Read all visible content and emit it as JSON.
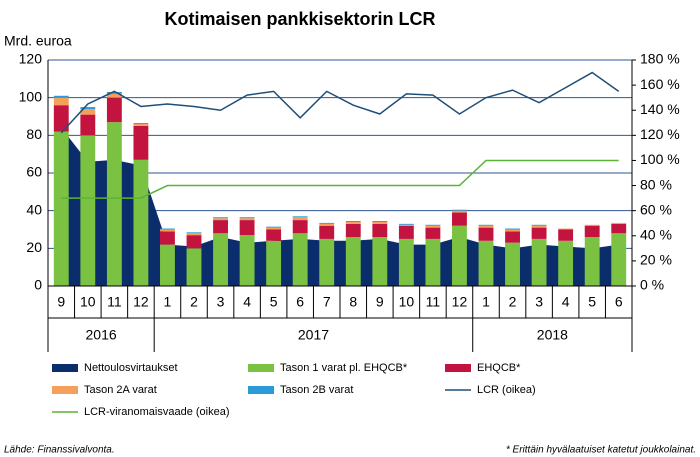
{
  "chart_data": {
    "type": "bar",
    "title": "Kotimaisen pankkisektorin LCR",
    "y_label": "Mrd. euroa",
    "categories": [
      "9",
      "10",
      "11",
      "12",
      "1",
      "2",
      "3",
      "4",
      "5",
      "6",
      "7",
      "8",
      "9",
      "10",
      "11",
      "12",
      "1",
      "2",
      "3",
      "4",
      "5",
      "6"
    ],
    "year_groups": [
      {
        "label": "2016",
        "span": 4
      },
      {
        "label": "2017",
        "span": 12
      },
      {
        "label": "2018",
        "span": 6
      }
    ],
    "ylim": [
      0,
      120
    ],
    "yticks": [
      0,
      20,
      40,
      60,
      80,
      100,
      120
    ],
    "y2lim": [
      0,
      180
    ],
    "y2ticks": [
      {
        "value": 0,
        "label": "0 %"
      },
      {
        "value": 20,
        "label": "20 %"
      },
      {
        "value": 40,
        "label": "40 %"
      },
      {
        "value": 60,
        "label": "60 %"
      },
      {
        "value": 80,
        "label": "80 %"
      },
      {
        "value": 100,
        "label": "100 %"
      },
      {
        "value": 120,
        "label": "120 %"
      },
      {
        "value": 140,
        "label": "140 %"
      },
      {
        "value": 160,
        "label": "160 %"
      },
      {
        "value": 180,
        "label": "180 %"
      }
    ],
    "grid": true,
    "series": [
      {
        "name": "Nettoulosvirtaukset",
        "type": "area",
        "color": "#0b2d6b",
        "values": [
          84,
          66,
          67,
          64,
          22,
          21,
          26,
          23,
          24,
          25,
          24,
          24,
          25,
          22,
          22,
          26,
          22,
          20,
          22,
          21,
          20,
          22
        ]
      },
      {
        "name": "Tason 1 varat pl. EHQCB*",
        "type": "bar",
        "color": "#7cc242",
        "values": [
          82,
          80,
          87,
          67,
          22,
          20,
          28,
          27,
          24,
          28,
          25,
          26,
          26,
          25,
          25,
          32,
          24,
          23,
          25,
          24,
          26,
          28
        ]
      },
      {
        "name": "EHQCB*",
        "type": "bar",
        "color": "#c3143f",
        "values": [
          14,
          11,
          13,
          18,
          7,
          7,
          7,
          8,
          6,
          7,
          7,
          7,
          7,
          7,
          6,
          7,
          7,
          6,
          6,
          6,
          6,
          5
        ]
      },
      {
        "name": "Tason 2A varat",
        "type": "bar",
        "color": "#f5a05a",
        "values": [
          4,
          3,
          2,
          1,
          1,
          1,
          1,
          1,
          1,
          1.5,
          1,
          1,
          1,
          0.5,
          1,
          1,
          1,
          1,
          1,
          0.5,
          0.5,
          0.5
        ]
      },
      {
        "name": "Tason 2B varat",
        "type": "bar",
        "color": "#2a9bd6",
        "values": [
          1,
          1,
          1,
          0.5,
          0.5,
          0.5,
          0.5,
          0.5,
          0.5,
          0.5,
          0.5,
          0.5,
          0.5,
          0.5,
          0.5,
          0.5,
          0.5,
          0.5,
          0.5,
          0,
          0,
          0
        ]
      },
      {
        "name": "LCR (oikea)",
        "type": "line",
        "axis": "y2",
        "color": "#1f4e79",
        "values": [
          122,
          145,
          155,
          143,
          145,
          143,
          140,
          152,
          155,
          134,
          155,
          144,
          137,
          153,
          152,
          137,
          150,
          156,
          146,
          158,
          170,
          155
        ]
      },
      {
        "name": "LCR-viranomaisvaade (oikea)",
        "type": "line",
        "axis": "y2",
        "color": "#5cb234",
        "values": [
          70,
          70,
          70,
          70,
          80,
          80,
          80,
          80,
          80,
          80,
          80,
          80,
          80,
          80,
          80,
          80,
          100,
          100,
          100,
          100,
          100,
          100
        ]
      }
    ],
    "source": "Lähde: Finanssivalvonta.",
    "note": "* Erittäin hyvälaatuiset katetut joukkolainat."
  }
}
